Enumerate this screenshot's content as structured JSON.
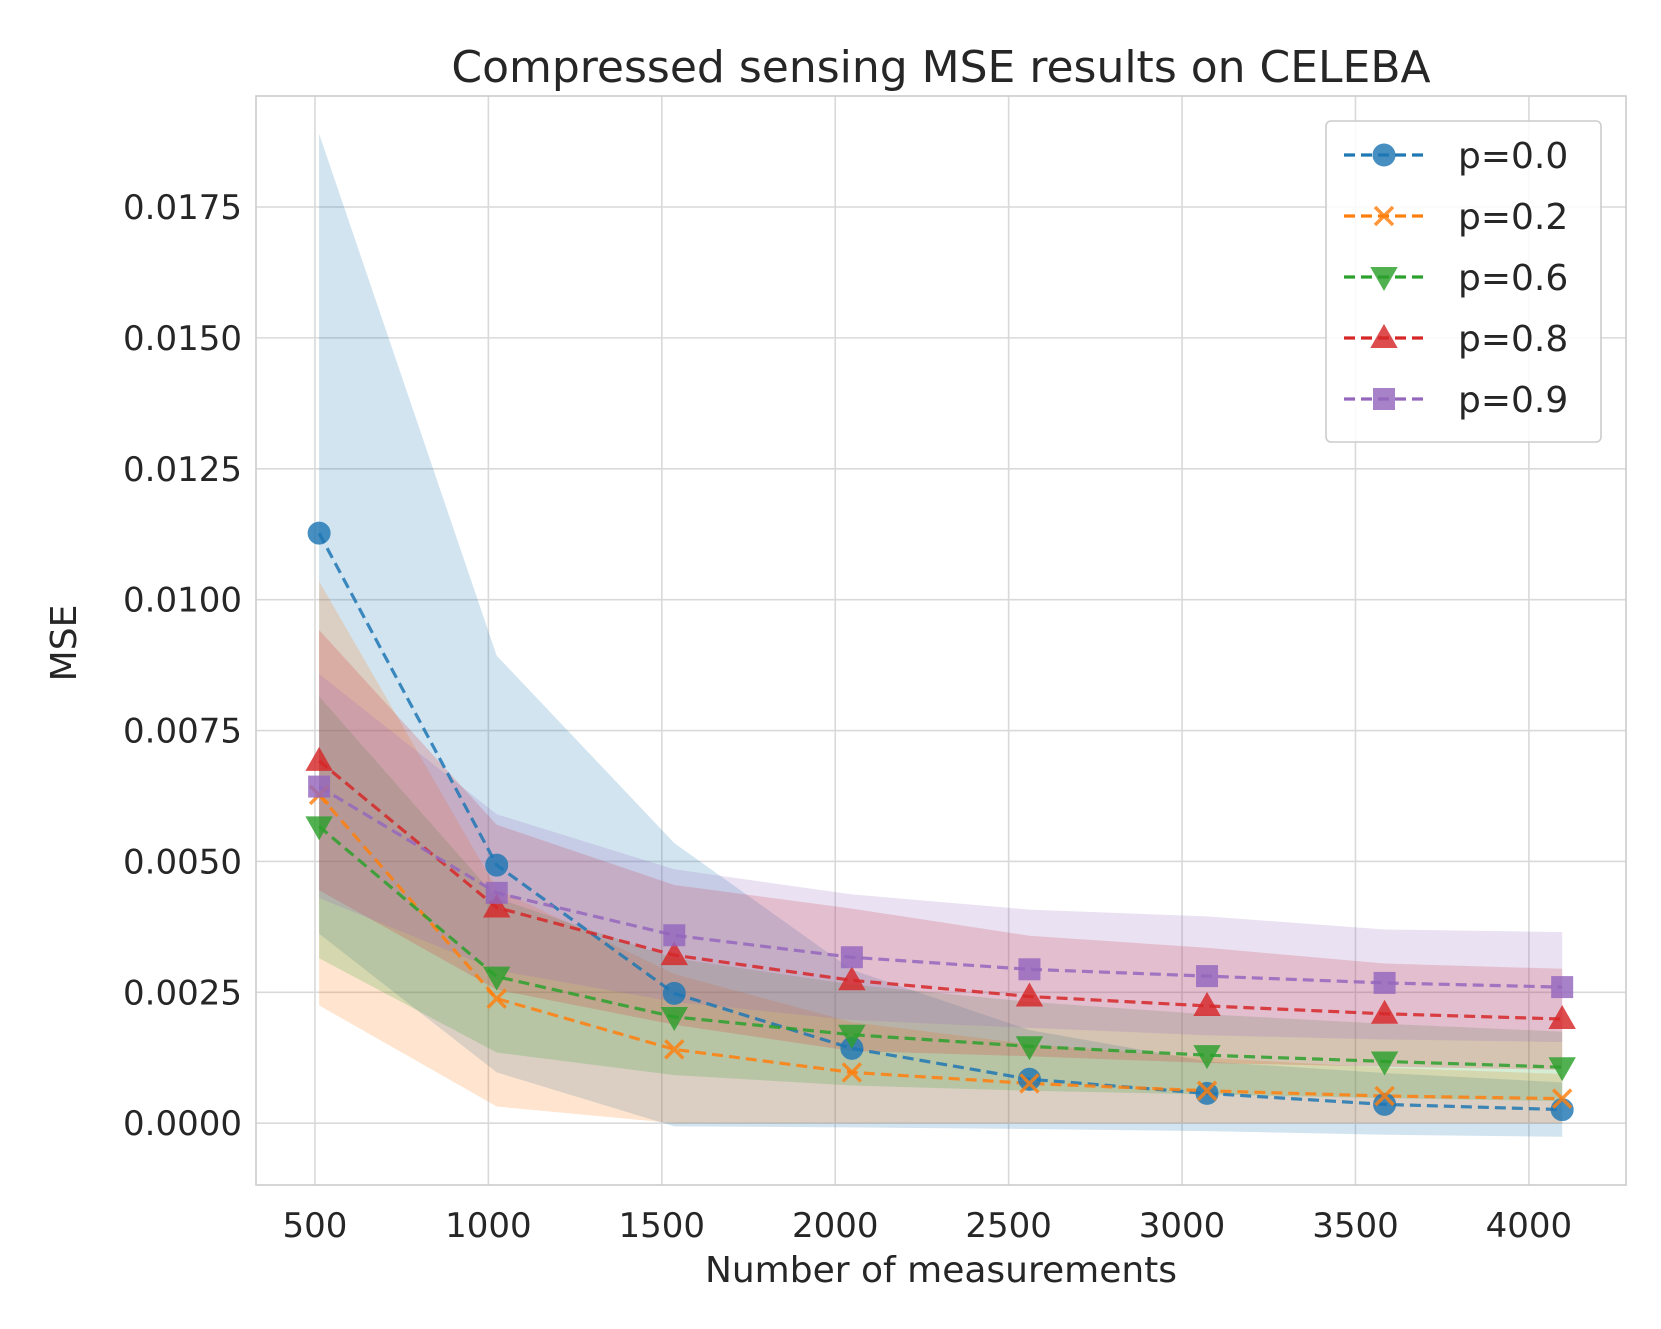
{
  "chart_data": {
    "type": "line",
    "title": "Compressed sensing MSE results on CELEBA",
    "xlabel": "Number of measurements",
    "ylabel": "MSE",
    "xlim": [
      330,
      4280
    ],
    "ylim": [
      -0.00118,
      0.01962
    ],
    "xticks": [
      500,
      1000,
      1500,
      2000,
      2500,
      3000,
      3500,
      4000
    ],
    "xtick_labels": [
      "500",
      "1000",
      "1500",
      "2000",
      "2500",
      "3000",
      "3500",
      "4000"
    ],
    "yticks": [
      0.0,
      0.0025,
      0.005,
      0.0075,
      0.01,
      0.0125,
      0.015,
      0.0175
    ],
    "ytick_labels": [
      "0.0000",
      "0.0025",
      "0.0050",
      "0.0075",
      "0.0100",
      "0.0125",
      "0.0150",
      "0.0175"
    ],
    "grid": true,
    "legend_position": "top-right",
    "x": [
      512,
      1024,
      1536,
      2048,
      2560,
      3072,
      3584,
      4096
    ],
    "series": [
      {
        "name": "p=0.0",
        "color": "#1f77b4",
        "marker": "circle",
        "values": [
          0.01127,
          0.00493,
          0.00248,
          0.00143,
          0.00084,
          0.00057,
          0.00036,
          0.00026
        ],
        "upper": [
          0.0189,
          0.00893,
          0.00535,
          0.00293,
          0.00178,
          0.00118,
          0.00096,
          0.00078
        ],
        "lower": [
          0.00362,
          0.00097,
          -6e-05,
          -8e-05,
          -0.00011,
          -0.00015,
          -0.00022,
          -0.00026
        ]
      },
      {
        "name": "p=0.2",
        "color": "#ff7f0e",
        "marker": "x",
        "values": [
          0.00627,
          0.00238,
          0.00141,
          0.00097,
          0.00076,
          0.00062,
          0.00052,
          0.00047
        ],
        "upper": [
          0.01035,
          0.00448,
          0.00285,
          0.00193,
          0.00151,
          0.00125,
          0.00106,
          0.00094
        ],
        "lower": [
          0.00225,
          0.00032,
          0.0,
          0.0,
          0.0,
          0.0,
          0.0,
          0.0
        ]
      },
      {
        "name": "p=0.6",
        "color": "#2ca02c",
        "marker": "triangle-down",
        "values": [
          0.00567,
          0.0028,
          0.00203,
          0.00169,
          0.00147,
          0.0013,
          0.00118,
          0.00107
        ],
        "upper": [
          0.00815,
          0.0043,
          0.00315,
          0.00265,
          0.00232,
          0.00208,
          0.0019,
          0.00175
        ],
        "lower": [
          0.00315,
          0.00135,
          0.00092,
          0.00072,
          0.00062,
          0.00055,
          0.00048,
          0.00042
        ]
      },
      {
        "name": "p=0.8",
        "color": "#d62728",
        "marker": "triangle-up",
        "values": [
          0.00692,
          0.00412,
          0.00321,
          0.00273,
          0.00242,
          0.00224,
          0.00209,
          0.00199
        ],
        "upper": [
          0.00942,
          0.0057,
          0.00455,
          0.0041,
          0.00358,
          0.00335,
          0.00305,
          0.00295
        ],
        "lower": [
          0.00445,
          0.00255,
          0.00188,
          0.00138,
          0.00128,
          0.00115,
          0.00108,
          0.00102
        ]
      },
      {
        "name": "p=0.9",
        "color": "#9467bd",
        "marker": "square",
        "values": [
          0.00643,
          0.0044,
          0.00359,
          0.00317,
          0.00294,
          0.00281,
          0.00268,
          0.0026
        ],
        "upper": [
          0.00858,
          0.0059,
          0.00485,
          0.00437,
          0.00408,
          0.00395,
          0.0037,
          0.00365
        ],
        "lower": [
          0.0043,
          0.00292,
          0.00232,
          0.00197,
          0.00182,
          0.00168,
          0.0016,
          0.00155
        ]
      }
    ]
  }
}
